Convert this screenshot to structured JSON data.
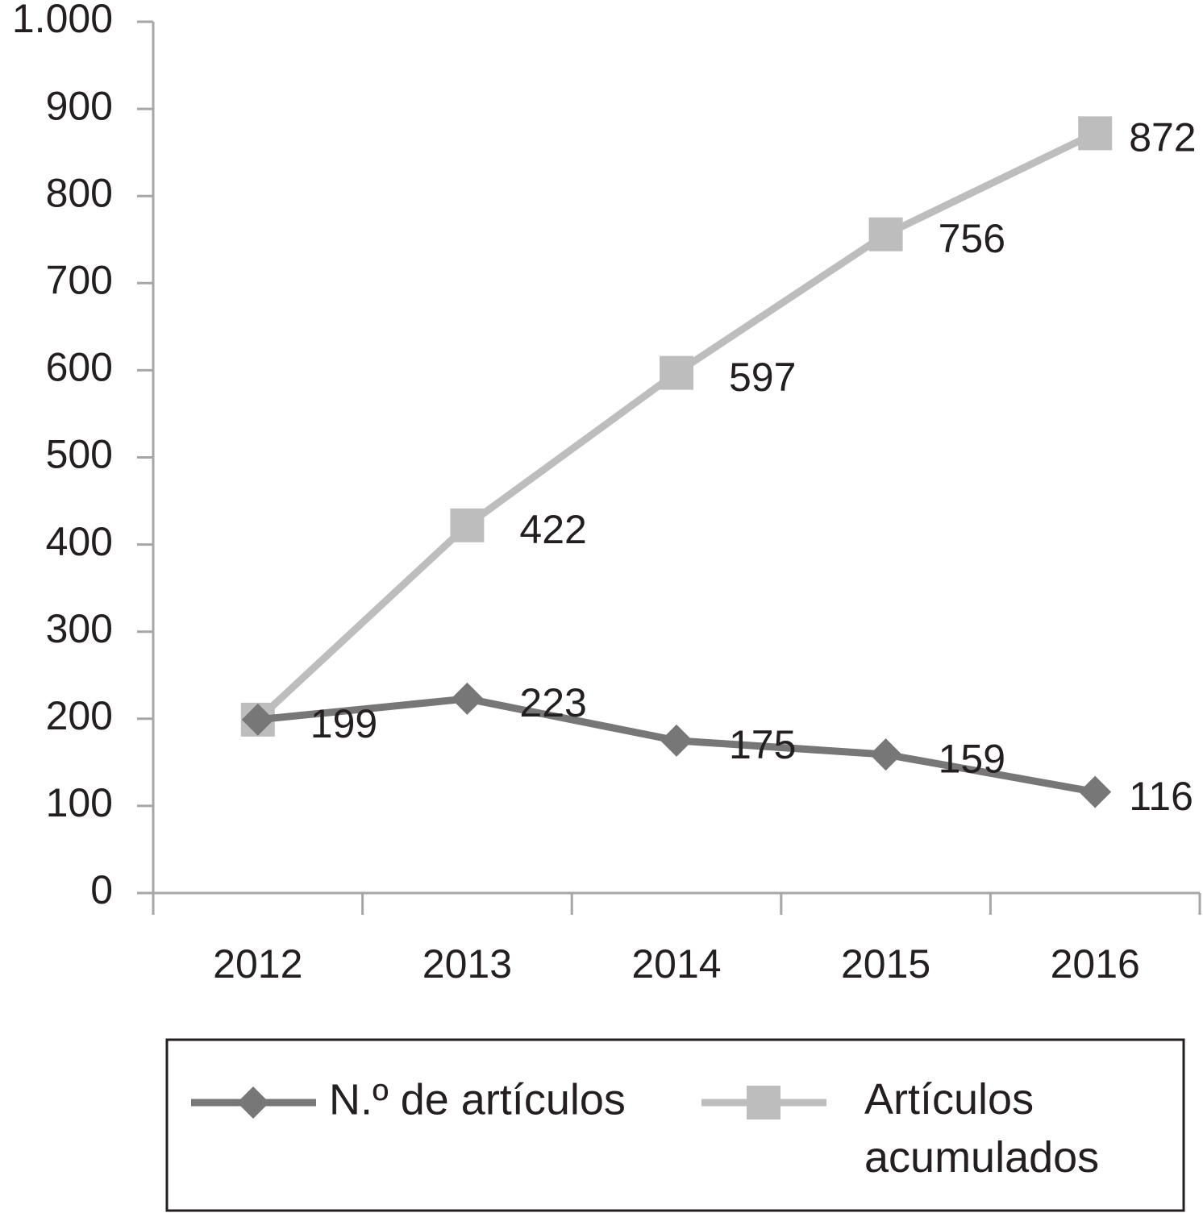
{
  "chart_data": {
    "type": "line",
    "categories": [
      "2012",
      "2013",
      "2014",
      "2015",
      "2016"
    ],
    "series": [
      {
        "name": "N.º de artículos",
        "color": "#777777",
        "marker": "diamond",
        "values": [
          199,
          223,
          175,
          159,
          116
        ]
      },
      {
        "name": "Artículos acumulados",
        "color": "#bdbdbd",
        "marker": "square",
        "values": [
          199,
          422,
          597,
          756,
          872
        ],
        "value_labels": [
          null,
          "422",
          "597",
          "756",
          "872"
        ]
      }
    ],
    "ylim": [
      0,
      1000
    ],
    "yticks": [
      0,
      100,
      200,
      300,
      400,
      500,
      600,
      700,
      800,
      900,
      {
        "value": 1000,
        "label": "1.000"
      }
    ],
    "legend": "bottom"
  }
}
